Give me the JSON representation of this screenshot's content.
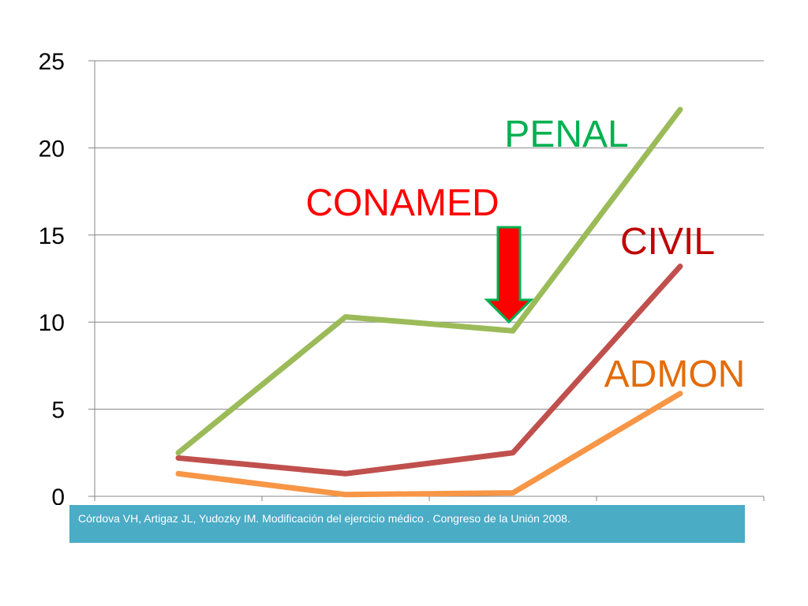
{
  "chart_data": {
    "type": "line",
    "categories": [
      "",
      "",
      "",
      ""
    ],
    "ylim": [
      0,
      25
    ],
    "yticks": [
      0,
      5,
      10,
      15,
      20,
      25
    ],
    "grid": true,
    "series": [
      {
        "name": "PENAL",
        "color": "#9bbb59",
        "label_color": "#00b050",
        "values": [
          2.5,
          10.3,
          9.5,
          22.2
        ]
      },
      {
        "name": "CIVIL",
        "color": "#c0504d",
        "label_color": "#c00000",
        "values": [
          2.2,
          1.3,
          2.5,
          13.2
        ]
      },
      {
        "name": "ADMON",
        "color": "#f79646",
        "label_color": "#e36c09",
        "values": [
          1.3,
          0.1,
          0.2,
          5.9
        ]
      }
    ],
    "annotations": [
      {
        "text": "CONAMED",
        "color": "#ff0000",
        "arrow_fill": "#ff0000",
        "arrow_stroke": "#00b050"
      }
    ]
  },
  "caption": "Córdova VH, Artigaz JL, Yudozky IM. Modificación del ejercicio médico . Congreso de la Unión 2008."
}
